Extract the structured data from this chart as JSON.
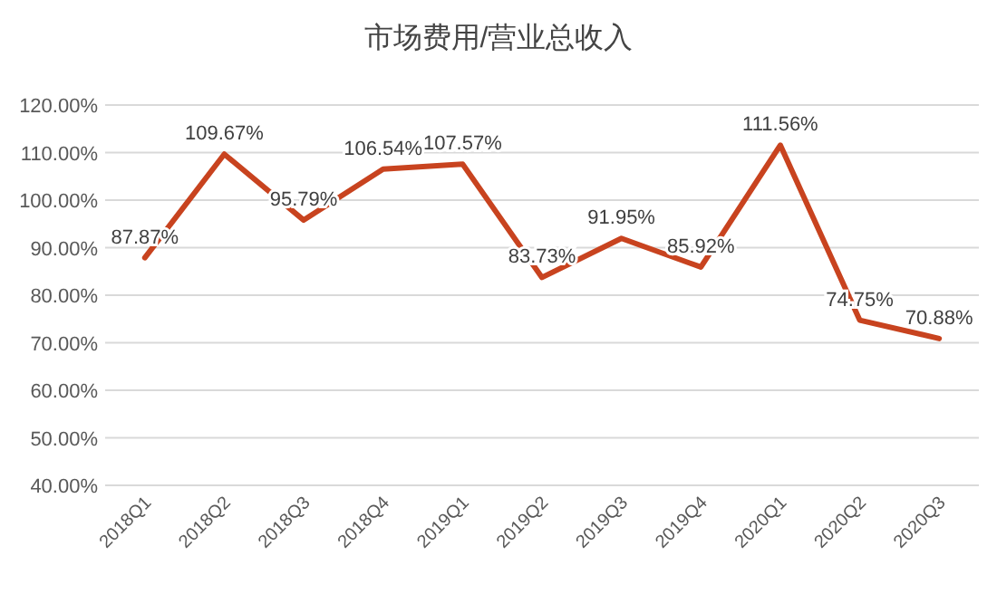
{
  "chart_data": {
    "type": "line",
    "title": "市场费用/营业总收入",
    "categories": [
      "2018Q1",
      "2018Q2",
      "2018Q3",
      "2018Q4",
      "2019Q1",
      "2019Q2",
      "2019Q3",
      "2019Q4",
      "2020Q1",
      "2020Q2",
      "2020Q3"
    ],
    "series": [
      {
        "color": "#c8431f",
        "values": [
          87.87,
          109.67,
          95.79,
          106.54,
          107.57,
          83.73,
          91.95,
          85.92,
          111.56,
          74.75,
          70.88
        ],
        "value_labels": [
          "87.87%",
          "109.67%",
          "95.79%",
          "106.54%",
          "107.57%",
          "83.73%",
          "91.95%",
          "85.92%",
          "111.56%",
          "74.75%",
          "70.88%"
        ]
      }
    ],
    "ylim": [
      40,
      120
    ],
    "yticks": [
      {
        "value": 40,
        "label": "40.00%"
      },
      {
        "value": 50,
        "label": "50.00%"
      },
      {
        "value": 60,
        "label": "60.00%"
      },
      {
        "value": 70,
        "label": "70.00%"
      },
      {
        "value": 80,
        "label": "80.00%"
      },
      {
        "value": 90,
        "label": "90.00%"
      },
      {
        "value": 100,
        "label": "100.00%"
      },
      {
        "value": 110,
        "label": "110.00%"
      },
      {
        "value": 120,
        "label": "120.00%"
      }
    ],
    "grid": "y",
    "marker": "none",
    "line_style": "solid"
  }
}
